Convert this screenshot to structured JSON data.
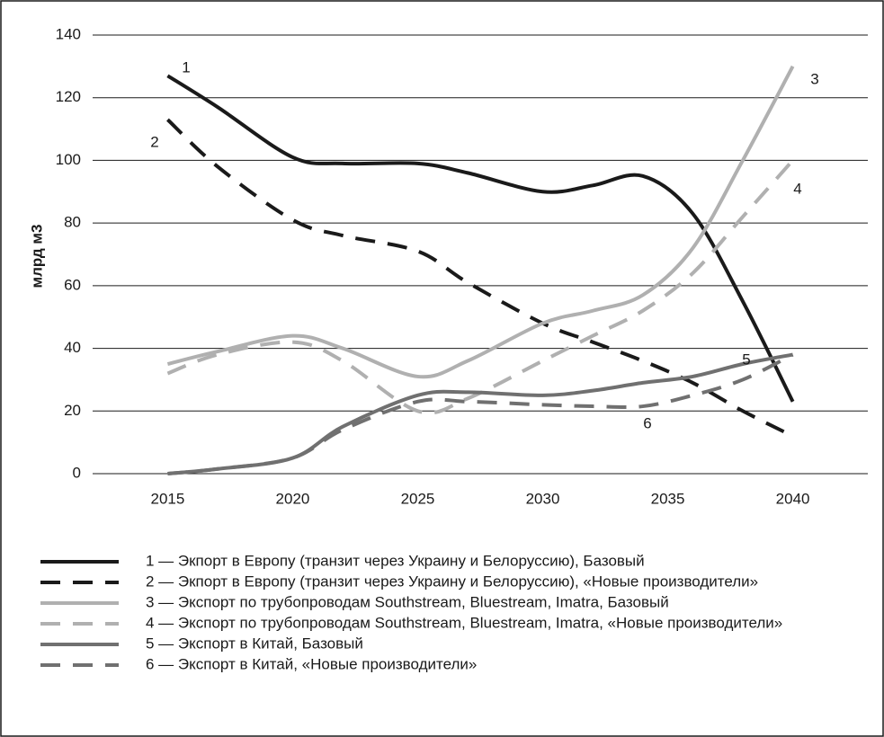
{
  "chart_data": {
    "type": "line",
    "ylabel": "млрд м3",
    "x": [
      2015,
      2017,
      2020,
      2022,
      2025,
      2027,
      2030,
      2032,
      2034,
      2036,
      2038,
      2040
    ],
    "xlim": [
      2012,
      2043
    ],
    "xticks": [
      2015,
      2020,
      2025,
      2030,
      2035,
      2040
    ],
    "ylim": [
      0,
      140
    ],
    "yticks": [
      0,
      20,
      40,
      60,
      80,
      100,
      120,
      140
    ],
    "grid": true,
    "legend": "bottom",
    "series": [
      {
        "name": "1 — Экпорт в Европу (транзит через Украину и Белоруссию), Базовый",
        "color": "#1a1a1a",
        "dashed": false,
        "values": [
          127,
          117,
          101,
          99,
          99,
          96,
          90,
          92,
          95,
          83,
          55,
          23
        ]
      },
      {
        "name": "2 — Экпорт в Европу (транзит через Украину и Белоруссию), «Новые производители»",
        "color": "#1a1a1a",
        "dashed": true,
        "values": [
          113,
          98,
          81,
          76,
          71,
          61,
          48,
          42,
          36,
          29,
          20,
          12
        ]
      },
      {
        "name": "3 — Экспорт по трубопроводам Southstream, Bluestream, Imatra, Базовый",
        "color": "#b0b0b0",
        "dashed": false,
        "values": [
          35,
          39,
          44,
          40,
          31,
          36,
          48,
          52,
          57,
          72,
          100,
          130
        ]
      },
      {
        "name": "4 — Экспорт по трубопроводам Southstream, Bluestream, Imatra, «Новые производители»",
        "color": "#b0b0b0",
        "dashed": true,
        "values": [
          32,
          38,
          42,
          36,
          20,
          24,
          36,
          44,
          52,
          64,
          82,
          100
        ]
      },
      {
        "name": "5 — Экспорт в Китай, Базовый",
        "color": "#707070",
        "dashed": false,
        "values": [
          0,
          1.5,
          5,
          15,
          25,
          26,
          25,
          26.5,
          29,
          31,
          35,
          38
        ]
      },
      {
        "name": "6 — Экспорт в Китай, «Новые производители»",
        "color": "#707070",
        "dashed": true,
        "values": [
          0,
          1.5,
          5,
          14,
          23,
          23,
          22,
          21.5,
          21.5,
          25,
          30,
          38
        ]
      }
    ],
    "annotations": [
      "1",
      "2",
      "3",
      "4",
      "5",
      "6"
    ]
  }
}
